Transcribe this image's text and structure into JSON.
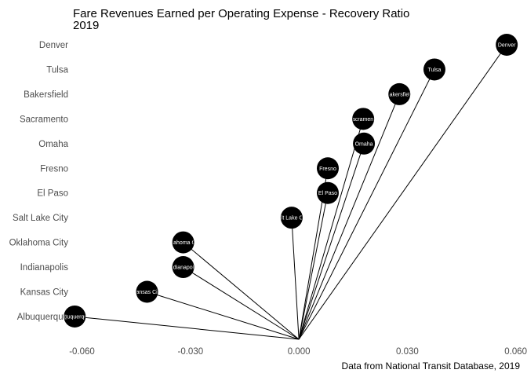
{
  "chart_data": {
    "type": "scatter",
    "title": "Fare Revenues Earned per Operating Expense - Recovery Ratio",
    "subtitle": "2019",
    "caption": "Data from National Transit Database, 2019",
    "xlabel": "",
    "ylabel": "",
    "xlim": [
      -0.0625,
      0.0605
    ],
    "x_ticks": [
      -0.06,
      -0.03,
      0.0,
      0.03,
      0.06
    ],
    "x_tick_labels": [
      "-0.060",
      "-0.030",
      "0.000",
      "0.030",
      "0.060"
    ],
    "grid": false,
    "legend": "none",
    "segment_origin": {
      "x": 0.0,
      "y": "below Albuquerque"
    },
    "point_color": "#000000",
    "line_color": "#000000",
    "categories": [
      "Denver",
      "Tulsa",
      "Bakersfield",
      "Sacramento",
      "Omaha",
      "Fresno",
      "El Paso",
      "Salt Lake City",
      "Oklahoma City",
      "Indianapolis",
      "Kansas City",
      "Albuquerque"
    ],
    "points": [
      {
        "city": "Denver",
        "x": 0.0575,
        "label": "Denver"
      },
      {
        "city": "Tulsa",
        "x": 0.0375,
        "label": "Tulsa"
      },
      {
        "city": "Bakersfield",
        "x": 0.0278,
        "label": "Bakersfield"
      },
      {
        "city": "Sacramento",
        "x": 0.0178,
        "label": "Sacramento"
      },
      {
        "city": "Omaha",
        "x": 0.018,
        "label": "Omaha"
      },
      {
        "city": "Fresno",
        "x": 0.008,
        "label": "Fresno"
      },
      {
        "city": "El Paso",
        "x": 0.008,
        "label": "El Paso"
      },
      {
        "city": "Salt Lake City",
        "x": -0.002,
        "label": "Salt Lake City"
      },
      {
        "city": "Oklahoma City",
        "x": -0.032,
        "label": "Oklahoma City"
      },
      {
        "city": "Indianapolis",
        "x": -0.032,
        "label": "Indianapolis"
      },
      {
        "city": "Kansas City",
        "x": -0.042,
        "label": "Kansas City"
      },
      {
        "city": "Albuquerque",
        "x": -0.062,
        "label": "Albuquerque"
      }
    ]
  }
}
